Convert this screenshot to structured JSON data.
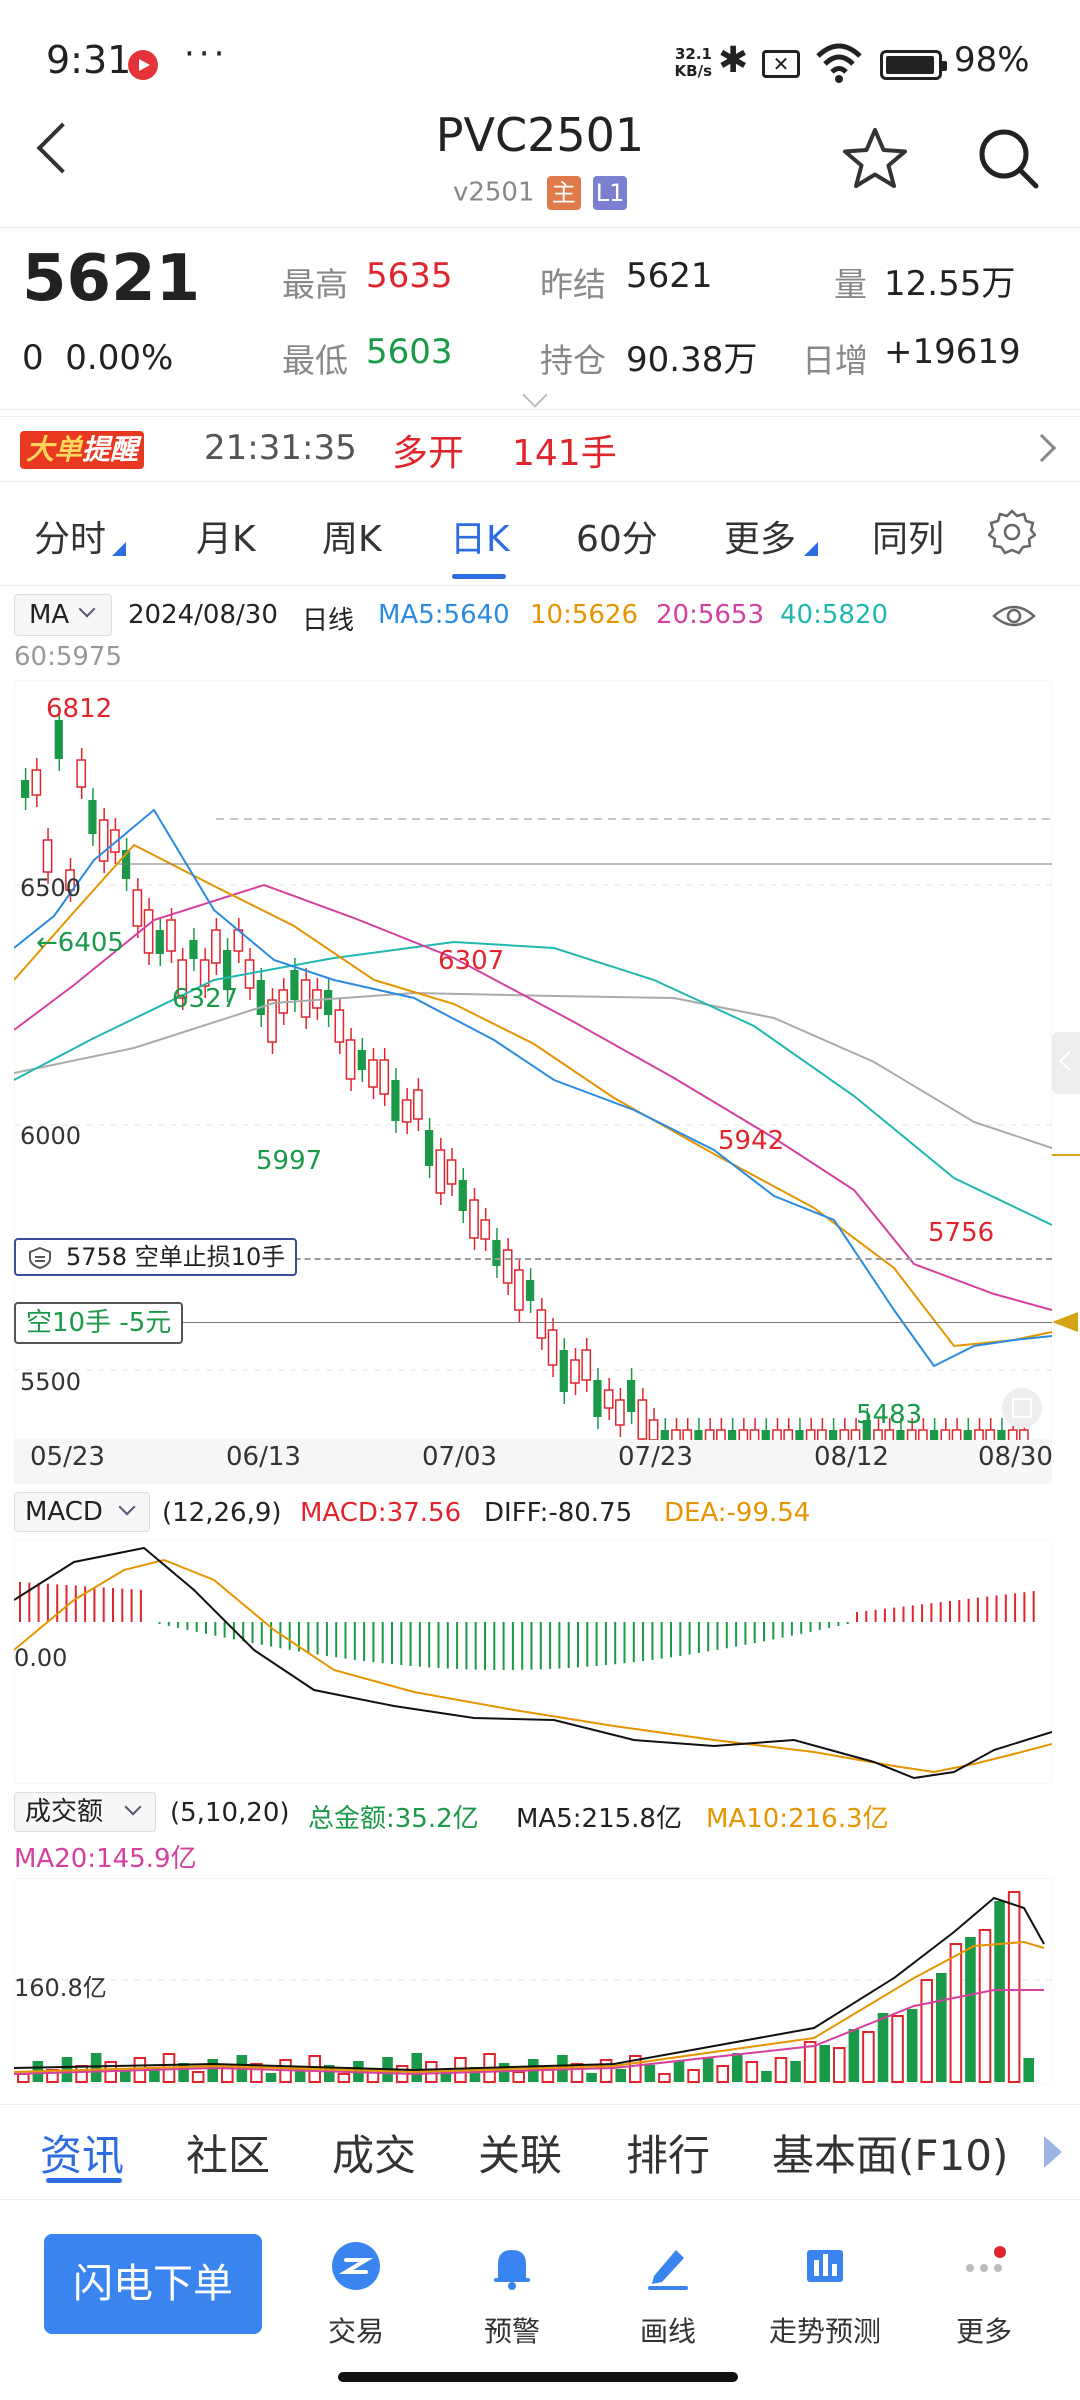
{
  "status": {
    "time": "9:31",
    "dots": "···",
    "net_speed": "32.1",
    "net_unit": "KB/s",
    "battery": "98%"
  },
  "header": {
    "title": "PVC2501",
    "subtitle": "v2501",
    "tag_main": "主",
    "tag_l1": "L1"
  },
  "quote": {
    "price": "5621",
    "change": "0",
    "change_pct": "0.00%",
    "high_label": "最高",
    "high": "5635",
    "low_label": "最低",
    "low": "5603",
    "prev_settle_label": "昨结",
    "prev_settle": "5621",
    "volume_label": "量",
    "volume": "12.55万",
    "open_interest_label": "持仓",
    "open_interest": "90.38万",
    "daily_change_label": "日增",
    "daily_change": "+19619"
  },
  "alert": {
    "logo_a": "大单",
    "logo_b": "提醒",
    "time": "21:31:35",
    "action": "多开",
    "qty": "141手"
  },
  "tabs": [
    {
      "label": "分时",
      "active": false
    },
    {
      "label": "月K",
      "active": false
    },
    {
      "label": "周K",
      "active": false
    },
    {
      "label": "日K",
      "active": true
    },
    {
      "label": "60分",
      "active": false
    },
    {
      "label": "更多",
      "active": false
    },
    {
      "label": "同列",
      "active": false
    }
  ],
  "ma_bar": {
    "selector": "MA",
    "date": "2024/08/30",
    "period": "日线",
    "ma5": "MA5:5640",
    "ma10": "10:5626",
    "ma20": "20:5653",
    "ma40": "40:5820",
    "ma60": "60:5975"
  },
  "colors": {
    "up": "#e0262c",
    "down": "#1a9a48",
    "ma5": "#2a8be0",
    "ma10": "#e69500",
    "ma20": "#d6409f",
    "ma40": "#1fb8b0",
    "ma60": "#aaaaaa",
    "accent": "#2d6cdf"
  },
  "kline": {
    "annotations": {
      "high": "6812",
      "p6405": "←6405",
      "p6327": "6327",
      "low1": "5997",
      "p6307": "6307",
      "p5942": "5942",
      "p5756": "5756",
      "low2": "5483"
    },
    "y_labels": [
      "6500",
      "6000",
      "5500"
    ],
    "stop_order": "5758  空单止损10手",
    "position": "空10手  -5元",
    "dates": [
      "05/23",
      "06/13",
      "07/03",
      "07/23",
      "08/12",
      "08/30"
    ]
  },
  "macd": {
    "selector": "MACD",
    "params": "(12,26,9)",
    "macd": "MACD:37.56",
    "diff": "DIFF:-80.75",
    "dea": "DEA:-99.54",
    "zero_label": "0.00"
  },
  "volume": {
    "selector": "成交额",
    "params": "(5,10,20)",
    "total": "总金额:35.2亿",
    "ma5": "MA5:215.8亿",
    "ma10": "MA10:216.3亿",
    "ma20": "MA20:145.9亿",
    "level_label": "160.8亿"
  },
  "bottom_tabs": [
    "资讯",
    "社区",
    "成交",
    "关联",
    "排行",
    "基本面(F10)"
  ],
  "dock": {
    "flash_order": "闪电下单",
    "items": [
      "交易",
      "预警",
      "画线",
      "走势预测",
      "更多"
    ]
  }
}
